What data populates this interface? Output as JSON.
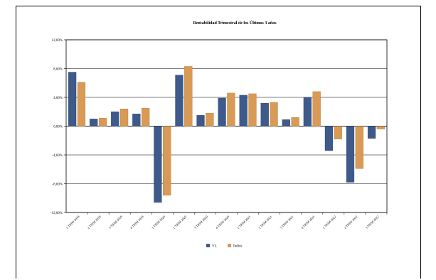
{
  "chart_data": {
    "type": "bar",
    "title": "Rentabilidad Trimestral de los Últimos 3 años",
    "xlabel": "",
    "ylabel": "",
    "categories": [
      "1 TRIM 2019",
      "2 TRIM 2019",
      "3 TRIM 2019",
      "4 TRIM 2019",
      "1 TRIM 2020",
      "2 TRIM 2020",
      "3 TRIM 2020",
      "4 TRIM 2020",
      "1 TRIM 2021",
      "2 TRIM 2021",
      "3 TRIM 2021",
      "4 TRIM 2021",
      "1 TRIM 2022",
      "2 TRIM 2022",
      "3 TRIM 2022"
    ],
    "series": [
      {
        "name": "VL",
        "color": "#3e5a8a",
        "values": [
          7.5,
          1.0,
          2.0,
          1.7,
          -10.6,
          7.1,
          1.5,
          3.9,
          4.3,
          3.2,
          0.9,
          4.0,
          -3.4,
          -7.8,
          -1.7
        ]
      },
      {
        "name": "Índice",
        "color": "#d89a55",
        "values": [
          6.1,
          1.1,
          2.4,
          2.5,
          -9.6,
          8.3,
          1.8,
          4.6,
          4.5,
          3.3,
          1.2,
          4.8,
          -1.8,
          -5.9,
          -0.4
        ]
      }
    ],
    "ylim": [
      -12,
      12
    ],
    "yticks": [
      12,
      8,
      4,
      0,
      -4,
      -8,
      -12
    ],
    "ytick_labels": [
      "12,00%",
      "8,00%",
      "4,00%",
      "0,00%",
      "-4,00%",
      "-8,00%",
      "-12,00%"
    ],
    "grid": true,
    "legend": "bottom-center"
  }
}
